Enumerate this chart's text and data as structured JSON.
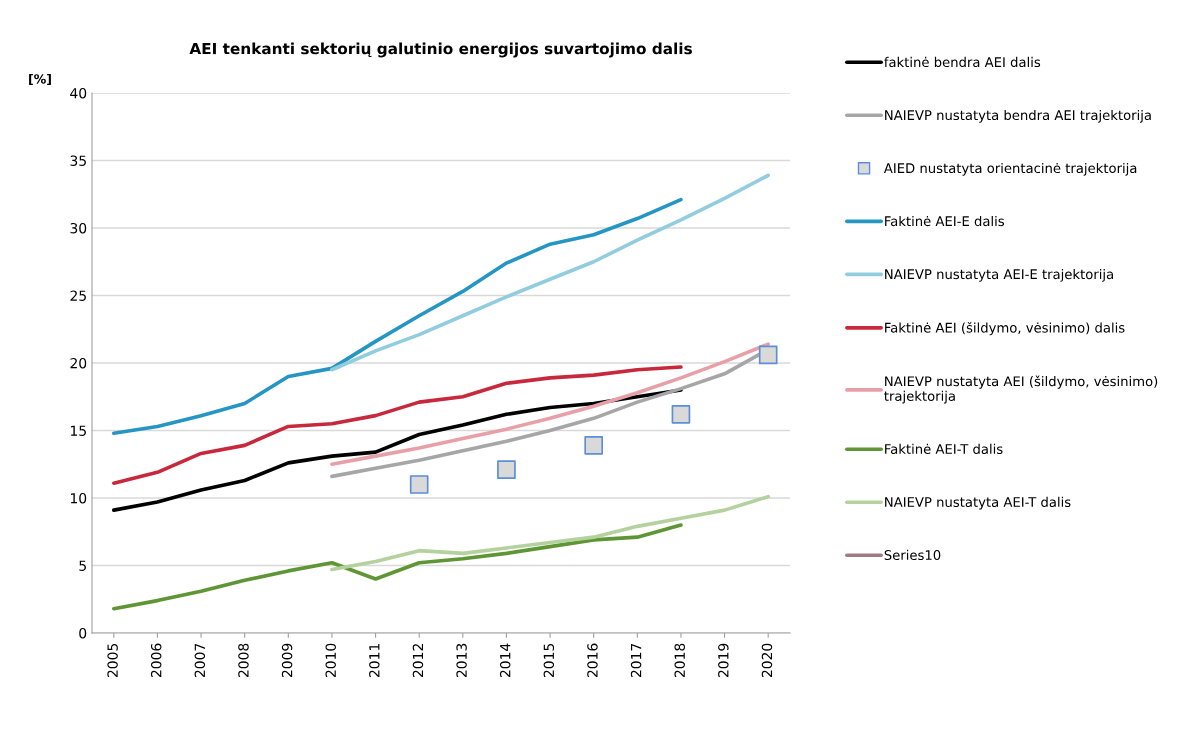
{
  "chart_data": {
    "type": "line",
    "title": "AEI tenkanti sektorių galutinio energijos suvartojimo dalis",
    "ylabel": "[%]",
    "categories": [
      "2005",
      "2006",
      "2007",
      "2008",
      "2009",
      "2010",
      "2011",
      "2012",
      "2013",
      "2014",
      "2015",
      "2016",
      "2017",
      "2018",
      "2019",
      "2020"
    ],
    "ylim": [
      0,
      40
    ],
    "yticks": [
      0,
      5,
      10,
      15,
      20,
      25,
      30,
      35,
      40
    ],
    "grid": "y",
    "legend": "right",
    "marker": "none",
    "line_style": "solid",
    "series": [
      {
        "name": "faktinė bendra AEI dalis",
        "color": "#000000",
        "values": [
          9.1,
          9.7,
          10.6,
          11.3,
          12.6,
          13.1,
          13.4,
          14.7,
          15.4,
          16.2,
          16.7,
          17.0,
          17.5,
          18.0,
          null,
          null
        ]
      },
      {
        "name": "NAIEVP nustatyta bendra AEI trajektorija",
        "color": "#a6a6a6",
        "values": [
          null,
          null,
          null,
          null,
          null,
          11.6,
          12.2,
          12.8,
          13.5,
          14.2,
          15.0,
          15.9,
          17.1,
          18.1,
          19.2,
          21.0
        ]
      },
      {
        "name": "AIED nustatyta orientacinė trajektorija",
        "type": "scatter",
        "marker": "square",
        "color": "#d9d9d9",
        "values": [
          null,
          null,
          null,
          null,
          null,
          null,
          null,
          11.0,
          null,
          12.1,
          null,
          13.9,
          null,
          16.2,
          null,
          20.6
        ]
      },
      {
        "name": "Faktinė AEI-E dalis",
        "color": "#2596c4",
        "values": [
          14.8,
          15.3,
          16.1,
          17.0,
          19.0,
          19.6,
          21.6,
          23.5,
          25.3,
          27.4,
          28.8,
          29.5,
          30.7,
          32.1,
          null,
          null
        ]
      },
      {
        "name": "NAIEVP nustatyta AEI-E trajektorija",
        "color": "#92cddf",
        "values": [
          null,
          null,
          null,
          null,
          null,
          19.5,
          20.9,
          22.1,
          23.5,
          24.9,
          26.2,
          27.5,
          29.1,
          30.6,
          32.2,
          33.9
        ]
      },
      {
        "name": "Faktinė AEI (šildymo, vėsinimo) dalis",
        "color": "#c8283c",
        "values": [
          11.1,
          11.9,
          13.3,
          13.9,
          15.3,
          15.5,
          16.1,
          17.1,
          17.5,
          18.5,
          18.9,
          19.1,
          19.5,
          19.7,
          null,
          null
        ]
      },
      {
        "name": "NAIEVP nustatyta AEI (šildymo, vėsinimo)\ntrajektorija",
        "color": "#e8a0a8",
        "values": [
          null,
          null,
          null,
          null,
          null,
          12.5,
          13.1,
          13.7,
          14.4,
          15.1,
          15.9,
          16.8,
          17.8,
          18.9,
          20.1,
          21.4
        ]
      },
      {
        "name": "Faktinė AEI-T dalis",
        "color": "#5e9636",
        "values": [
          1.8,
          2.4,
          3.1,
          3.9,
          4.6,
          5.2,
          4.0,
          5.2,
          5.5,
          5.9,
          6.4,
          6.9,
          7.1,
          8.0,
          null,
          null
        ]
      },
      {
        "name": "NAIEVP nustatyta AEI-T dalis",
        "color": "#b4d19e",
        "values": [
          null,
          null,
          null,
          null,
          null,
          4.7,
          5.3,
          6.1,
          5.9,
          6.3,
          6.7,
          7.1,
          7.9,
          8.5,
          9.1,
          10.1
        ]
      },
      {
        "name": "Series10",
        "color": "#a07c80",
        "values": [
          null,
          null,
          null,
          null,
          null,
          null,
          null,
          null,
          null,
          null,
          null,
          null,
          null,
          null,
          null,
          null
        ]
      }
    ]
  }
}
